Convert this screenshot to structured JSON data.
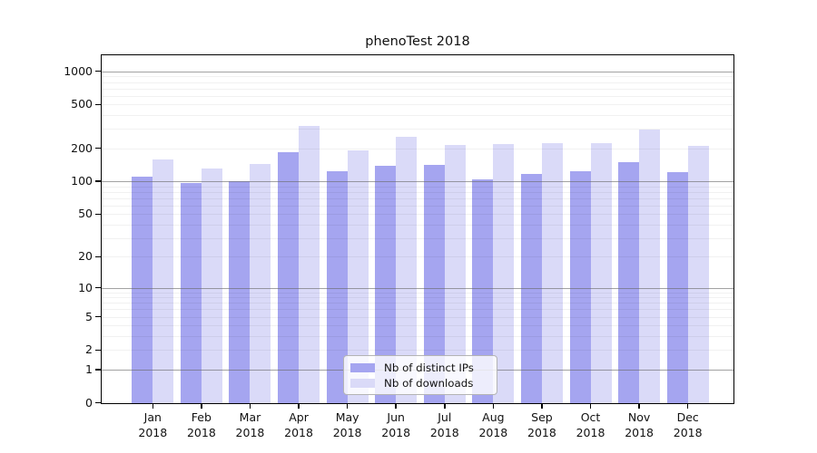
{
  "title": "phenoTest 2018",
  "chart_data": {
    "type": "bar",
    "title": "phenoTest 2018",
    "categories": [
      {
        "month": "Jan",
        "year": "2018"
      },
      {
        "month": "Feb",
        "year": "2018"
      },
      {
        "month": "Mar",
        "year": "2018"
      },
      {
        "month": "Apr",
        "year": "2018"
      },
      {
        "month": "May",
        "year": "2018"
      },
      {
        "month": "Jun",
        "year": "2018"
      },
      {
        "month": "Jul",
        "year": "2018"
      },
      {
        "month": "Aug",
        "year": "2018"
      },
      {
        "month": "Sep",
        "year": "2018"
      },
      {
        "month": "Oct",
        "year": "2018"
      },
      {
        "month": "Nov",
        "year": "2018"
      },
      {
        "month": "Dec",
        "year": "2018"
      }
    ],
    "series": [
      {
        "name": "Nb of distinct IPs",
        "color": "#a5a5f0",
        "values": [
          110,
          97,
          101,
          184,
          124,
          140,
          142,
          104,
          117,
          123,
          150,
          121
        ]
      },
      {
        "name": "Nb of downloads",
        "color": "#dadaf8",
        "values": [
          160,
          132,
          143,
          322,
          192,
          256,
          215,
          218,
          222,
          224,
          299,
          212
        ]
      }
    ],
    "xlabel": "",
    "ylabel": "",
    "yscale": "log10(1+x)",
    "ylim": [
      0,
      1400
    ],
    "y_tick_values": [
      1000,
      500,
      200,
      100,
      50,
      20,
      10,
      5,
      2,
      1,
      0
    ],
    "y_major_gridlines": [
      1,
      10,
      100,
      1000
    ],
    "grid": "horizontal gridlines only, drawn over bars",
    "legend_position": "inside lower center"
  },
  "colors": {
    "bar_distinct_ips": "#a5a5f0",
    "bar_downloads": "#dadaf8",
    "major_grid": "#a9a9a9",
    "minor_grid": "#ececec",
    "spine": "#000000",
    "legend_border": "#b4b4b4",
    "background": "#ffffff"
  }
}
